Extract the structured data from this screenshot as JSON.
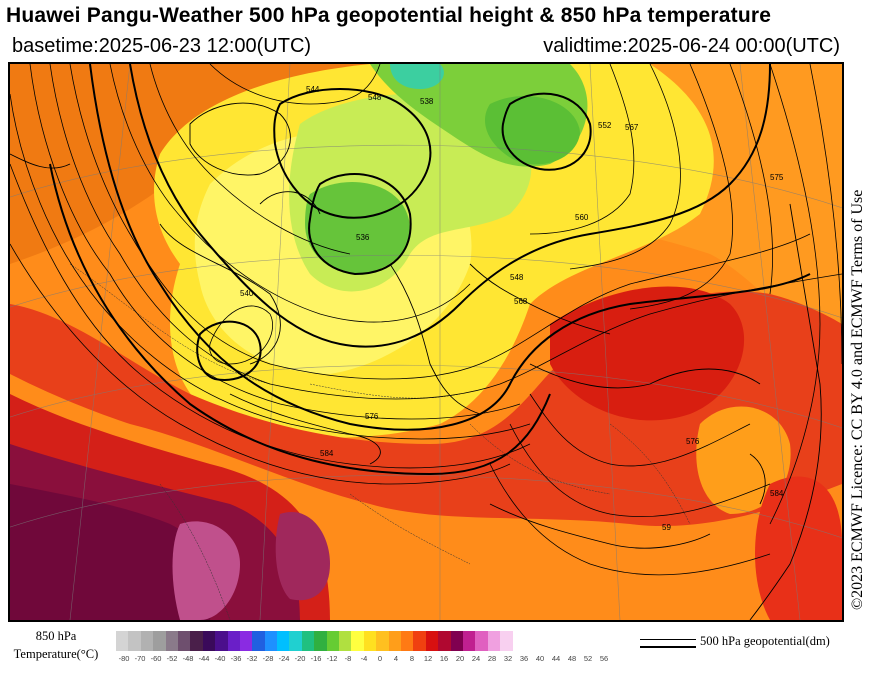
{
  "header": {
    "title": "Huawei Pangu-Weather 500 hPa geopotential height & 850 hPa temperature",
    "basetime": "basetime:2025-06-23 12:00(UTC)",
    "validtime": "validtime:2025-06-24 00:00(UTC)"
  },
  "licence": "©2023 ECMWF Licence: CC BY 4.0 and ECMWF Terms of Use",
  "legend": {
    "temperature_label_line1": "850 hPa",
    "temperature_label_line2": "Temperature(°C)",
    "geopotential_label": "500 hPa geopotential(dm)",
    "ticks": [
      "-80",
      "-70",
      "-60",
      "-52",
      "-48",
      "-44",
      "-40",
      "-36",
      "-32",
      "-28",
      "-24",
      "-20",
      "-16",
      "-12",
      "-8",
      "-4",
      "0",
      "4",
      "8",
      "12",
      "16",
      "20",
      "24",
      "28",
      "32",
      "36",
      "40",
      "44",
      "48",
      "52",
      "56"
    ],
    "colors": [
      "#d4d4d4",
      "#c3c3c3",
      "#b1b1b1",
      "#9e9e9e",
      "#8a7a8a",
      "#6e4f6e",
      "#4a1f4a",
      "#3a0a5a",
      "#4b0f8c",
      "#6a1fc8",
      "#8a2be2",
      "#2060e0",
      "#1e90ff",
      "#00bfff",
      "#20d0d0",
      "#20c080",
      "#30b040",
      "#66cc33",
      "#b0e040",
      "#ffff40",
      "#ffe020",
      "#ffc020",
      "#ff9e1a",
      "#ff7a14",
      "#f04010",
      "#d81010",
      "#b00830",
      "#800050",
      "#c02090",
      "#e060c0",
      "#f0a0e0",
      "#f8d0f0"
    ]
  },
  "map": {
    "contour_labels": [
      "544",
      "548",
      "538",
      "552",
      "536",
      "540",
      "548",
      "560",
      "567",
      "575",
      "568",
      "576",
      "584",
      "584",
      "576",
      "59"
    ]
  }
}
